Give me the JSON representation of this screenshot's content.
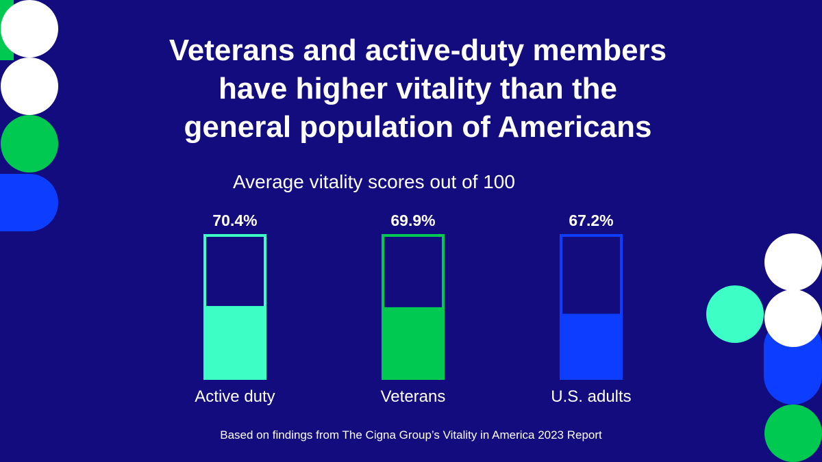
{
  "title": "Veterans and active-duty members have higher vitality than the general population of Americans",
  "title_lines": [
    "Veterans and active-duty members",
    "have higher vitality than the",
    "general population of Americans"
  ],
  "subtitle": "Average vitality scores out of 100",
  "footer": "Based on findings from The Cigna Group’s Vitality in America 2023 Report",
  "colors": {
    "background": "#120C7E",
    "mint": "#3DFFC5",
    "green": "#00C952",
    "blue": "#0D3EFF",
    "white": "#FFFFFF"
  },
  "chart_data": {
    "type": "bar",
    "title": "Average vitality scores out of 100",
    "categories": [
      "Active duty",
      "Veterans",
      "U.S. adults"
    ],
    "values": [
      70.4,
      69.9,
      67.2
    ],
    "data_labels": [
      "70.4%",
      "69.9%",
      "67.2%"
    ],
    "bar_colors": [
      "#3DFFC5",
      "#00C952",
      "#0D3EFF"
    ],
    "ylim": [
      0,
      100
    ],
    "xlabel": "",
    "ylabel": ""
  }
}
